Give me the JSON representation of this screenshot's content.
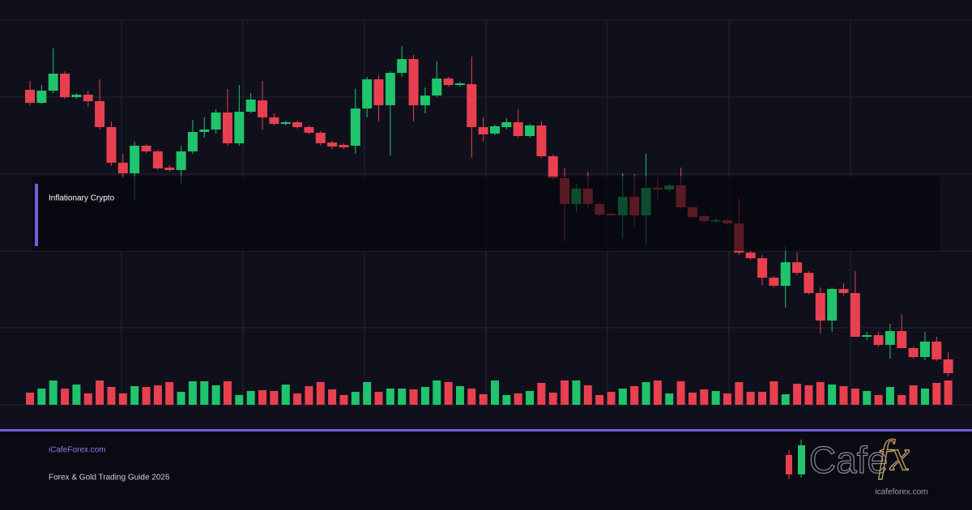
{
  "chart_data": {
    "type": "candlestick",
    "open": [
      389,
      373,
      388,
      409,
      380,
      383,
      375,
      343,
      299,
      286,
      320,
      313,
      293,
      290,
      313,
      337,
      340,
      361,
      323,
      362,
      376,
      355,
      347,
      349,
      343,
      336,
      324,
      321,
      320,
      366,
      402,
      370,
      410,
      427,
      370,
      382,
      403,
      395,
      396,
      343,
      335,
      343,
      349,
      332,
      345,
      307,
      280,
      248,
      267,
      248,
      236,
      234,
      257,
      234,
      268,
      266,
      271,
      244,
      233,
      227,
      228,
      224,
      188,
      181,
      157,
      147,
      176,
      163,
      138,
      104,
      143,
      138,
      84,
      86,
      74,
      91,
      70,
      59,
      78,
      56
    ],
    "high": [
      400,
      395,
      440,
      412,
      385,
      388,
      402,
      350,
      310,
      325,
      322,
      315,
      296,
      320,
      352,
      355,
      365,
      390,
      395,
      385,
      400,
      360,
      351,
      351,
      345,
      338,
      326,
      323,
      390,
      405,
      407,
      412,
      443,
      432,
      392,
      424,
      405,
      399,
      430,
      355,
      346,
      354,
      365,
      347,
      350,
      309,
      293,
      273,
      288,
      250,
      238,
      286,
      285,
      310,
      280,
      273,
      293,
      246,
      235,
      230,
      230,
      255,
      190,
      185,
      159,
      197,
      188,
      165,
      145,
      145,
      150,
      165,
      90,
      90,
      100,
      112,
      72,
      90,
      84,
      65
    ],
    "low": [
      370,
      372,
      385,
      378,
      378,
      368,
      340,
      295,
      280,
      252,
      311,
      290,
      288,
      272,
      310,
      330,
      335,
      320,
      320,
      360,
      340,
      345,
      345,
      341,
      334,
      320,
      316,
      316,
      310,
      355,
      350,
      308,
      405,
      350,
      360,
      380,
      393,
      393,
      305,
      325,
      333,
      340,
      330,
      330,
      305,
      278,
      202,
      238,
      242,
      233,
      232,
      205,
      220,
      198,
      255,
      264,
      242,
      230,
      225,
      225,
      222,
      185,
      179,
      148,
      145,
      120,
      160,
      136,
      88,
      90,
      135,
      84,
      80,
      72,
      57,
      70,
      57,
      55,
      54,
      35
    ],
    "close": [
      373,
      388,
      409,
      380,
      383,
      375,
      343,
      299,
      286,
      320,
      313,
      292,
      290,
      313,
      337,
      340,
      361,
      323,
      362,
      377,
      355,
      347,
      349,
      343,
      336,
      323,
      319,
      318,
      366,
      402,
      370,
      410,
      427,
      370,
      382,
      403,
      395,
      397,
      343,
      334,
      344,
      349,
      332,
      345,
      307,
      280,
      248,
      267,
      248,
      235,
      234,
      257,
      234,
      268,
      266,
      271,
      244,
      232,
      227,
      228,
      224,
      188,
      181,
      157,
      147,
      176,
      163,
      138,
      104,
      143,
      138,
      84,
      86,
      74,
      91,
      70,
      59,
      78,
      56,
      39
    ],
    "volume": [
      15,
      20,
      30,
      20,
      25,
      14,
      30,
      22,
      14,
      23,
      22,
      24,
      28,
      16,
      29,
      29,
      24,
      29,
      12,
      17,
      18,
      17,
      25,
      14,
      23,
      28,
      19,
      12,
      16,
      28,
      16,
      20,
      20,
      19,
      22,
      30,
      28,
      23,
      20,
      13,
      30,
      12,
      14,
      17,
      27,
      15,
      30,
      30,
      24,
      12,
      16,
      20,
      23,
      28,
      30,
      14,
      29,
      15,
      19,
      17,
      14,
      28,
      16,
      16,
      29,
      13,
      26,
      24,
      28,
      25,
      23,
      20,
      17,
      12,
      22,
      12,
      24,
      20,
      27,
      30
    ],
    "ylim": [
      0,
      475
    ],
    "yticks": [
      0,
      95,
      190,
      285,
      380,
      475
    ],
    "vlim": [
      0,
      100
    ],
    "up_color": "#1fc46c",
    "down_color": "#e8404f",
    "grid": true,
    "annotation": "Inflationary Crypto"
  },
  "footer": {
    "site": "iCafeForex.com",
    "subtitle": "Forex & Gold Trading Guide 2026"
  },
  "logo": {
    "text": "Cafe",
    "accent": "fx",
    "url": "icafeforex.com"
  }
}
